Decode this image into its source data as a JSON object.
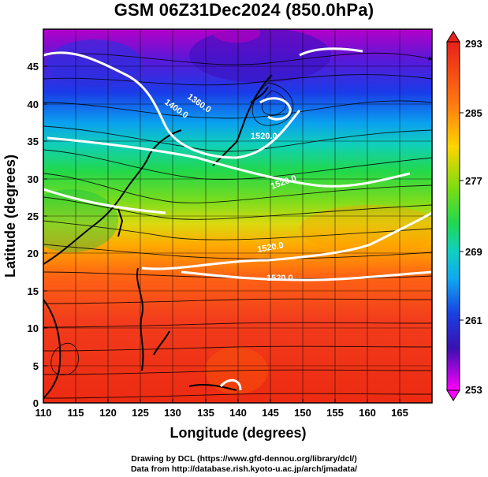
{
  "title": "GSM 06Z31Dec2024 (850.0hPa)",
  "xaxis": {
    "label": "Longitude (degrees)",
    "ticks": [
      110,
      115,
      120,
      125,
      130,
      135,
      140,
      145,
      150,
      155,
      160,
      165
    ],
    "range": [
      110,
      170
    ]
  },
  "yaxis": {
    "label": "Latitude  (degrees)",
    "ticks": [
      0,
      5,
      10,
      15,
      20,
      25,
      30,
      35,
      40,
      45
    ],
    "range": [
      0,
      50
    ]
  },
  "colorbar": {
    "labels": [
      293,
      285,
      277,
      269,
      261,
      253
    ],
    "range": [
      253,
      293
    ],
    "colors": [
      "#ff00ff",
      "#0000cc",
      "#00aaff",
      "#00dd66",
      "#99dd00",
      "#ffdd00",
      "#ff8800",
      "#ff3300",
      "#e81000"
    ]
  },
  "contours": [
    {
      "label": "1400.0",
      "lon": 137.5,
      "lat": 40.5
    },
    {
      "label": "1360.0",
      "lon": 141,
      "lat": 42.2
    },
    {
      "label": "1520.0",
      "lon": 144,
      "lat": 37.2
    },
    {
      "label": "1520.0",
      "lon": 147,
      "lat": 30.5
    },
    {
      "label": "1520.0",
      "lon": 144.5,
      "lat": 21.8
    },
    {
      "label": "1520.0",
      "lon": 147.5,
      "lat": 17.7
    }
  ],
  "credits": {
    "line1": "Drawing by DCL (https://www.gfd-dennou.org/library/dcl/)",
    "line2": "Data from http://database.rish.kyoto-u.ac.jp/arch/jmadata/"
  }
}
